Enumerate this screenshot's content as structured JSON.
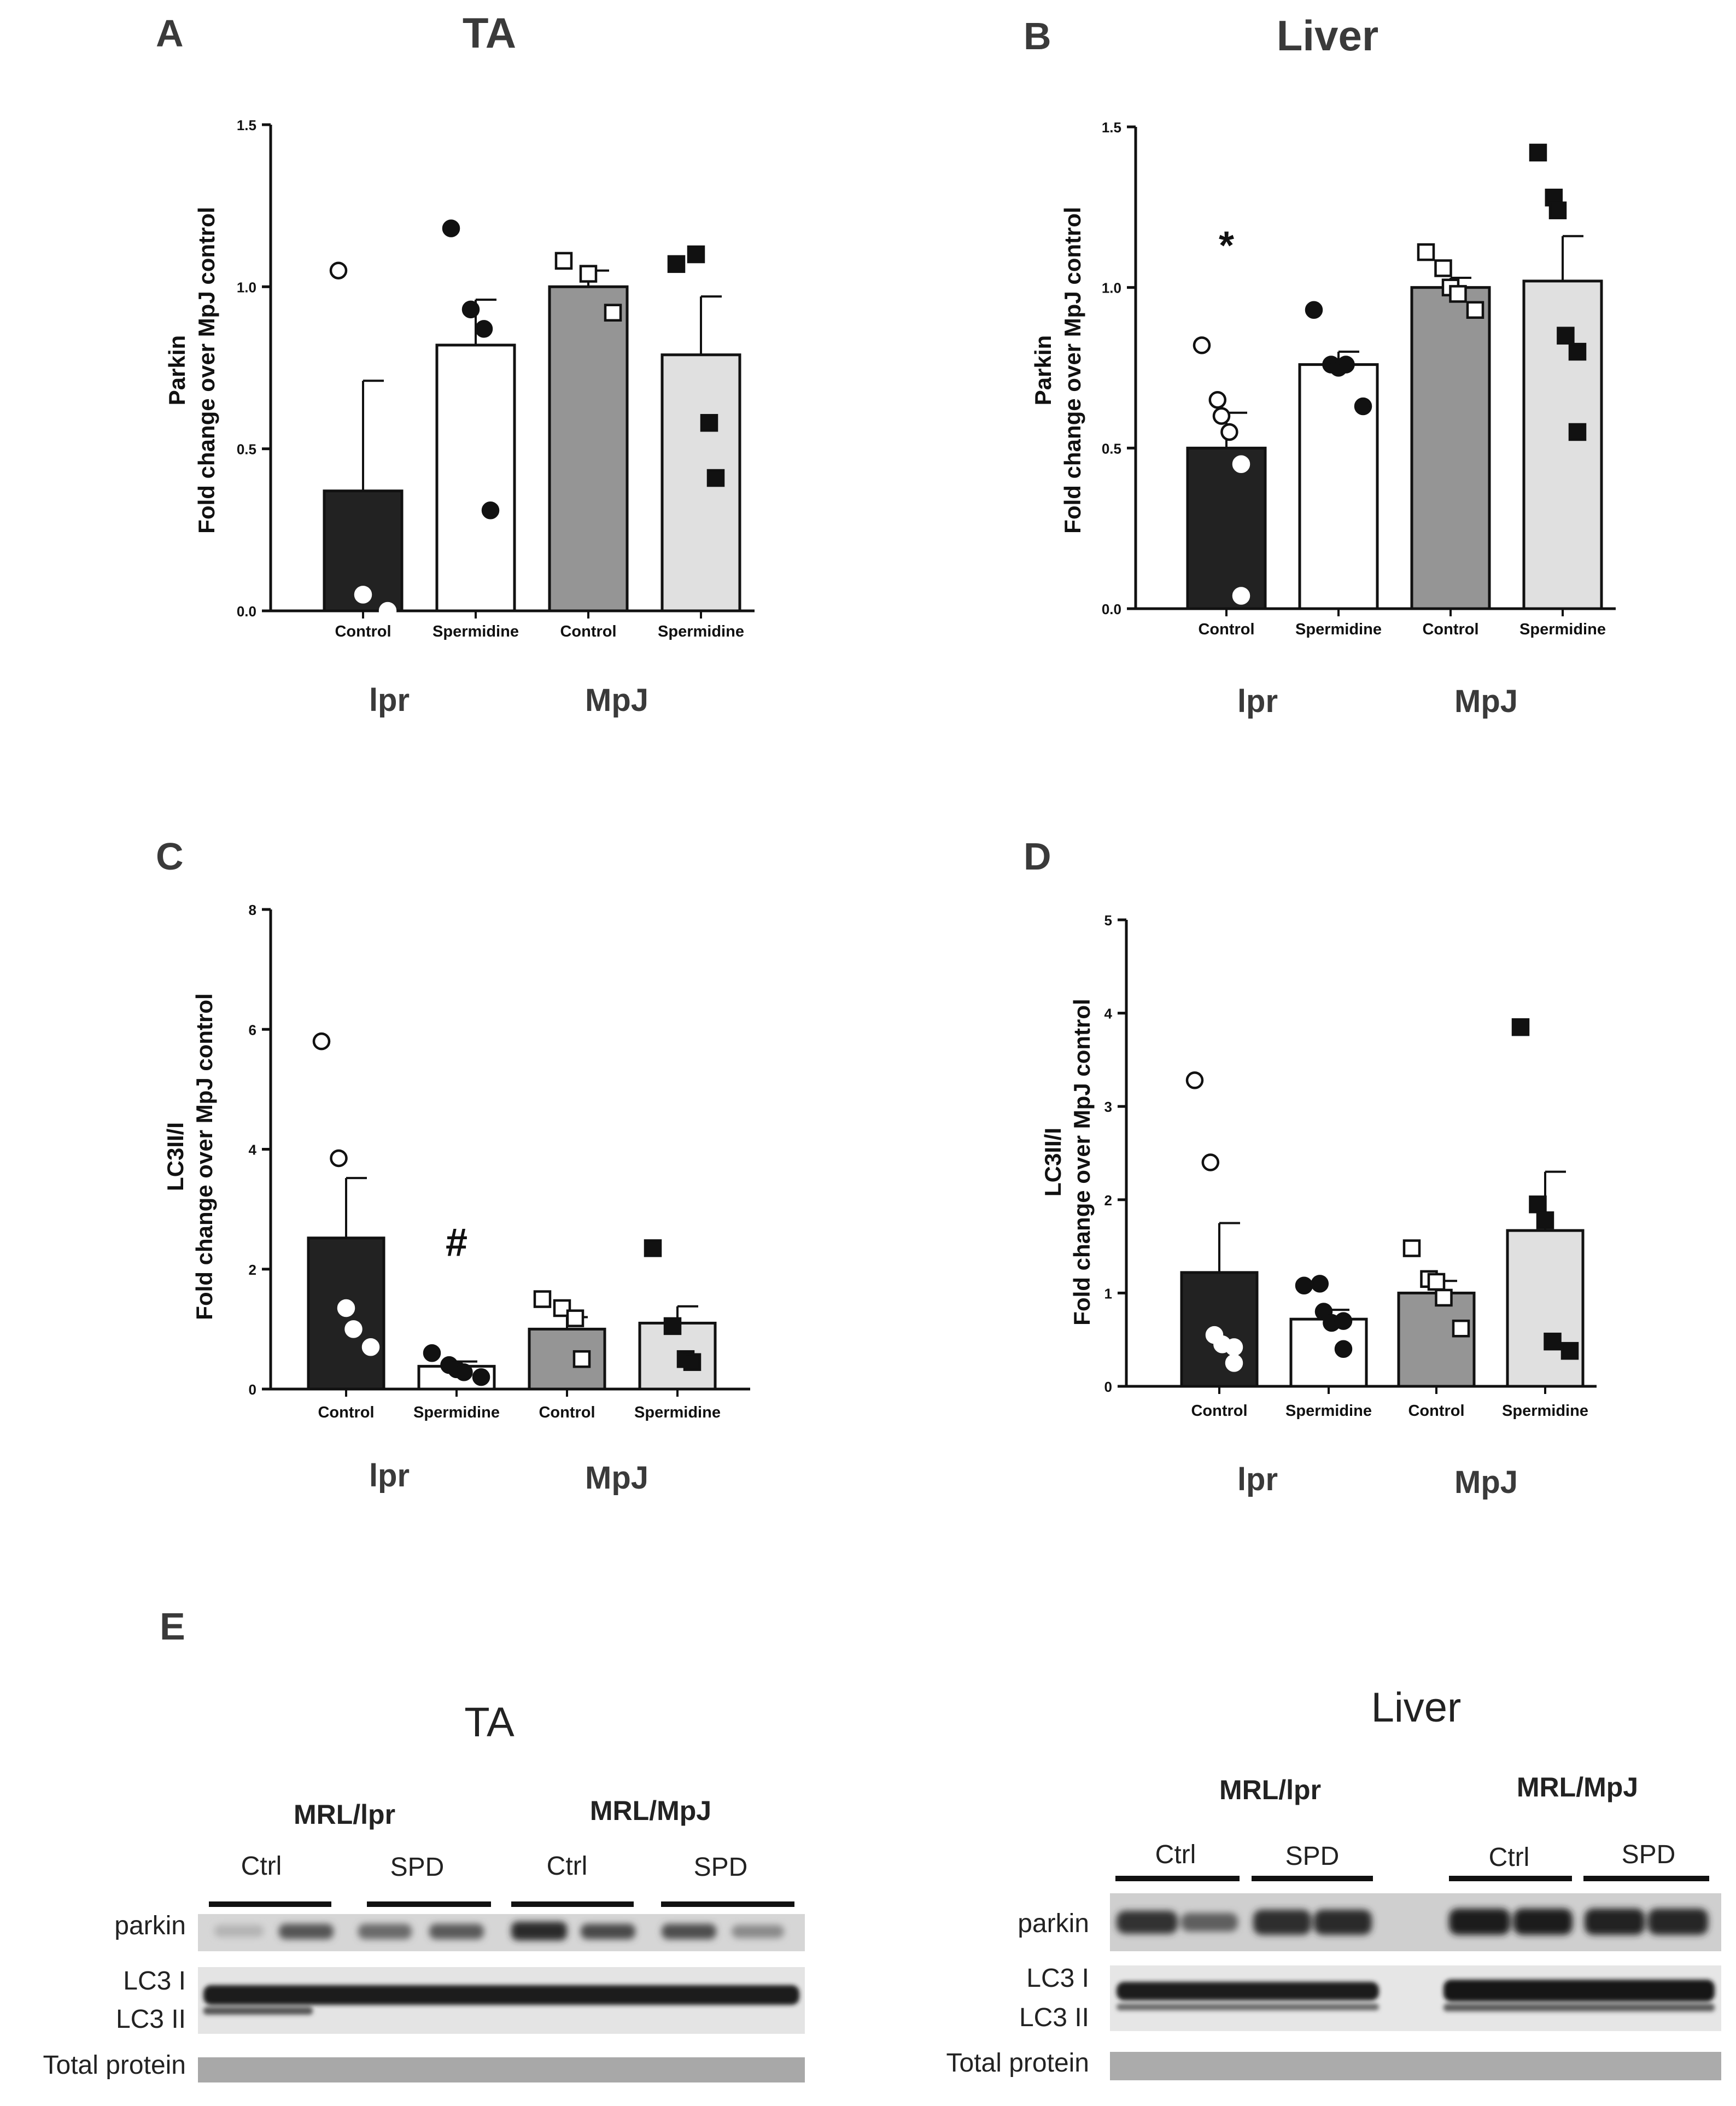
{
  "chart_data": [
    {
      "id": "A",
      "type": "bar",
      "panel_label": "A",
      "title": "TA",
      "ylabel": [
        "Parkin",
        "Fold change over MpJ control"
      ],
      "ylim": [
        0,
        1.5
      ],
      "yticks": [
        0.0,
        0.5,
        1.0,
        1.5
      ],
      "ytick_labels": [
        "0.0",
        "0.5",
        "1.0",
        "1.5"
      ],
      "categories": [
        "Control",
        "Spermidine",
        "Control",
        "Spermidine"
      ],
      "groups": [
        "lpr",
        "MpJ"
      ],
      "series": [
        {
          "name": "lpr Control",
          "mean": 0.37,
          "sem": 0.34,
          "points": [
            1.05,
            0.05,
            0.0
          ]
        },
        {
          "name": "lpr Spermidine",
          "mean": 0.82,
          "sem": 0.14,
          "points": [
            1.18,
            0.93,
            0.87,
            0.31
          ]
        },
        {
          "name": "MpJ Control",
          "mean": 1.0,
          "sem": 0.05,
          "points": [
            1.08,
            1.04,
            0.92
          ]
        },
        {
          "name": "MpJ Spermidine",
          "mean": 0.79,
          "sem": 0.18,
          "points": [
            1.07,
            1.1,
            0.58,
            0.41
          ]
        }
      ],
      "annotations": []
    },
    {
      "id": "B",
      "type": "bar",
      "panel_label": "B",
      "title": "Liver",
      "ylabel": [
        "Parkin",
        "Fold change over MpJ control"
      ],
      "ylim": [
        0,
        1.5
      ],
      "yticks": [
        0.0,
        0.5,
        1.0,
        1.5
      ],
      "ytick_labels": [
        "0.0",
        "0.5",
        "1.0",
        "1.5"
      ],
      "categories": [
        "Control",
        "Spermidine",
        "Control",
        "Spermidine"
      ],
      "groups": [
        "lpr",
        "MpJ"
      ],
      "series": [
        {
          "name": "lpr Control",
          "mean": 0.5,
          "sem": 0.11,
          "points": [
            0.82,
            0.65,
            0.6,
            0.55,
            0.45,
            0.04
          ]
        },
        {
          "name": "lpr Spermidine",
          "mean": 0.76,
          "sem": 0.04,
          "points": [
            0.93,
            0.76,
            0.75,
            0.76,
            0.63
          ]
        },
        {
          "name": "MpJ Control",
          "mean": 1.0,
          "sem": 0.03,
          "points": [
            1.11,
            1.06,
            1.0,
            0.98,
            0.93
          ]
        },
        {
          "name": "MpJ Spermidine",
          "mean": 1.02,
          "sem": 0.14,
          "points": [
            1.42,
            1.28,
            1.24,
            0.85,
            0.8,
            0.55
          ]
        }
      ],
      "annotations": [
        {
          "text": "*",
          "category_index": 0,
          "y": 1.15
        }
      ]
    },
    {
      "id": "C",
      "type": "bar",
      "panel_label": "C",
      "title": "",
      "ylabel": [
        "LC3II/I",
        "Fold change over MpJ control"
      ],
      "ylim": [
        0,
        8
      ],
      "yticks": [
        0,
        2,
        4,
        6,
        8
      ],
      "ytick_labels": [
        "0",
        "2",
        "4",
        "6",
        "8"
      ],
      "categories": [
        "Control",
        "Spermidine",
        "Control",
        "Spermidine"
      ],
      "groups": [
        "lpr",
        "MpJ"
      ],
      "series": [
        {
          "name": "lpr Control",
          "mean": 2.52,
          "sem": 1.0,
          "points": [
            5.8,
            3.85,
            1.35,
            1.0,
            0.7
          ]
        },
        {
          "name": "lpr Spermidine",
          "mean": 0.38,
          "sem": 0.08,
          "points": [
            0.6,
            0.4,
            0.33,
            0.28,
            0.2
          ]
        },
        {
          "name": "MpJ Control",
          "mean": 1.0,
          "sem": 0.2,
          "points": [
            1.5,
            1.35,
            1.18,
            0.5
          ]
        },
        {
          "name": "MpJ Spermidine",
          "mean": 1.1,
          "sem": 0.28,
          "points": [
            2.35,
            1.05,
            0.5,
            0.45
          ]
        }
      ],
      "annotations": [
        {
          "text": "#",
          "category_index": 1,
          "y": 2.55
        }
      ]
    },
    {
      "id": "D",
      "type": "bar",
      "panel_label": "D",
      "title": "",
      "ylabel": [
        "LC3II/I",
        "Fold change over MpJ control"
      ],
      "ylim": [
        0,
        5
      ],
      "yticks": [
        0,
        1,
        2,
        3,
        4,
        5
      ],
      "ytick_labels": [
        "0",
        "1",
        "2",
        "3",
        "4",
        "5"
      ],
      "categories": [
        "Control",
        "Spermidine",
        "Control",
        "Spermidine"
      ],
      "groups": [
        "lpr",
        "MpJ"
      ],
      "series": [
        {
          "name": "lpr Control",
          "mean": 1.22,
          "sem": 0.53,
          "points": [
            3.28,
            2.4,
            0.55,
            0.45,
            0.42,
            0.25
          ]
        },
        {
          "name": "lpr Spermidine",
          "mean": 0.72,
          "sem": 0.1,
          "points": [
            1.08,
            1.1,
            0.8,
            0.68,
            0.7,
            0.4
          ]
        },
        {
          "name": "MpJ Control",
          "mean": 1.0,
          "sem": 0.13,
          "points": [
            1.48,
            1.15,
            1.12,
            0.95,
            0.62
          ]
        },
        {
          "name": "MpJ Spermidine",
          "mean": 1.67,
          "sem": 0.63,
          "points": [
            3.85,
            1.95,
            1.78,
            0.48,
            0.38
          ]
        }
      ],
      "annotations": []
    }
  ],
  "group_labels": [
    "lpr",
    "MpJ"
  ],
  "blot": {
    "panel_label": "E",
    "ta": {
      "title": "TA",
      "groups": [
        "MRL/lpr",
        "MRL/MpJ"
      ],
      "lanes": [
        "Ctrl",
        "SPD",
        "Ctrl",
        "SPD"
      ],
      "rows": [
        "parkin",
        "LC3 I",
        "LC3 II",
        "Total protein"
      ]
    },
    "liver": {
      "title": "Liver",
      "groups": [
        "MRL/lpr",
        "MRL/MpJ"
      ],
      "lanes": [
        "Ctrl",
        "SPD",
        "Ctrl",
        "SPD"
      ],
      "rows": [
        "parkin",
        "LC3 I",
        "LC3 II",
        "Total protein"
      ]
    }
  },
  "colors": {
    "lpr_control": "#222222",
    "lpr_spermidine": "#ffffff",
    "mpj_control": "#959595",
    "mpj_spermidine": "#e0e0e0",
    "axis": "#111111"
  }
}
